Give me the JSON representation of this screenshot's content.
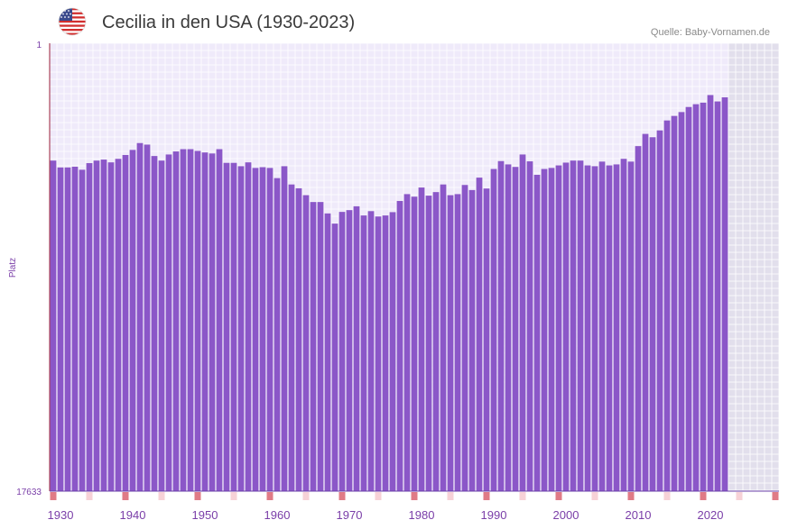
{
  "header": {
    "title": "Cecilia in den USA (1930-2023)",
    "source": "Quelle: Baby-Vornamen.de",
    "flag_icon": "us-flag-icon"
  },
  "colors": {
    "bar": "#8b57c8",
    "plot_bg": "#efeafa",
    "future_bg": "#e2dfec",
    "grid": "#ffffff",
    "axis_text": "#7a3ea8",
    "decade_marker": "#e07b86",
    "minor_marker": "#f7d2d7"
  },
  "chart_data": {
    "type": "bar",
    "title": "Cecilia in den USA (1930-2023)",
    "xlabel": "",
    "ylabel": "Platz",
    "y_axis_inverted": true,
    "ylim": [
      1,
      17633
    ],
    "y_ticks": [
      "1",
      "17633"
    ],
    "x_range": [
      1929,
      2029
    ],
    "x_ticks": [
      "1930",
      "1940",
      "1950",
      "1960",
      "1970",
      "1980",
      "1990",
      "2000",
      "2010",
      "2020"
    ],
    "future_shading_from": 2023,
    "categories": [
      1929,
      1930,
      1931,
      1932,
      1933,
      1934,
      1935,
      1936,
      1937,
      1938,
      1939,
      1940,
      1941,
      1942,
      1943,
      1944,
      1945,
      1946,
      1947,
      1948,
      1949,
      1950,
      1951,
      1952,
      1953,
      1954,
      1955,
      1956,
      1957,
      1958,
      1959,
      1960,
      1961,
      1962,
      1963,
      1964,
      1965,
      1966,
      1967,
      1968,
      1969,
      1970,
      1971,
      1972,
      1973,
      1974,
      1975,
      1976,
      1977,
      1978,
      1979,
      1980,
      1981,
      1982,
      1983,
      1984,
      1985,
      1986,
      1987,
      1988,
      1989,
      1990,
      1991,
      1992,
      1993,
      1994,
      1995,
      1996,
      1997,
      1998,
      1999,
      2000,
      2001,
      2002,
      2003,
      2004,
      2005,
      2006,
      2007,
      2008,
      2009,
      2010,
      2011,
      2012,
      2013,
      2014,
      2015,
      2016,
      2017,
      2018,
      2019,
      2020,
      2021,
      2022
    ],
    "values": [
      4620,
      4890,
      4890,
      4860,
      4980,
      4720,
      4620,
      4580,
      4690,
      4550,
      4400,
      4200,
      3930,
      3990,
      4440,
      4620,
      4380,
      4260,
      4170,
      4170,
      4240,
      4300,
      4340,
      4170,
      4710,
      4710,
      4840,
      4690,
      4910,
      4880,
      4910,
      5310,
      4840,
      5560,
      5710,
      5980,
      6250,
      6250,
      6700,
      7100,
      6640,
      6570,
      6420,
      6780,
      6610,
      6820,
      6780,
      6650,
      6210,
      5940,
      6040,
      5680,
      6000,
      5860,
      5560,
      5980,
      5940,
      5580,
      5780,
      5290,
      5720,
      4950,
      4640,
      4770,
      4870,
      4380,
      4650,
      5180,
      4950,
      4910,
      4810,
      4700,
      4620,
      4620,
      4810,
      4840,
      4660,
      4810,
      4770,
      4550,
      4660,
      4050,
      3570,
      3700,
      3430,
      3040,
      2860,
      2710,
      2510,
      2400,
      2340,
      2040,
      2290,
      2130
    ]
  }
}
